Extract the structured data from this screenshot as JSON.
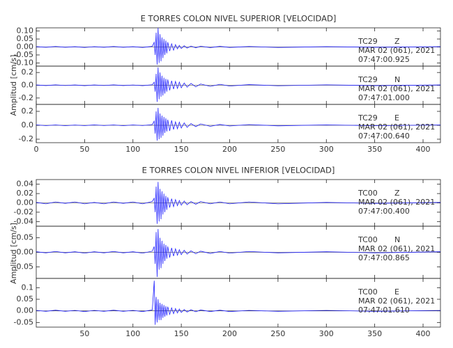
{
  "chart_data": [
    {
      "type": "line",
      "title": "E TORRES COLON NIVEL SUPERIOR [VELOCIDAD]",
      "y_label": "Amplitud [cm/s]",
      "color": "#1f1fff",
      "xlim": [
        0,
        418
      ],
      "xticks": [
        0,
        50,
        100,
        150,
        200,
        250,
        300,
        350,
        400
      ],
      "x": [
        0,
        10,
        20,
        30,
        40,
        50,
        60,
        70,
        80,
        90,
        100,
        110,
        120,
        122,
        123,
        124,
        125,
        126,
        127,
        128,
        129,
        130,
        131,
        132,
        133,
        134,
        135,
        136,
        138,
        140,
        142,
        144,
        146,
        148,
        150,
        153,
        156,
        160,
        165,
        170,
        180,
        190,
        200,
        220,
        250,
        300,
        350,
        418
      ],
      "panels": [
        {
          "station": "TC29",
          "component": "Z",
          "date": "MAR 02 (061), 2021",
          "time": "07:47:00.925",
          "ylim": [
            -0.12,
            0.12
          ],
          "yticks": [
            {
              "value": 0.1,
              "label": "0.10"
            },
            0.05,
            {
              "value": 0,
              "label": "0.00"
            },
            -0.05,
            {
              "value": -0.1,
              "label": "-0.10"
            }
          ],
          "values": [
            0.002,
            -0.002,
            0.003,
            -0.002,
            0.002,
            -0.003,
            0.002,
            -0.002,
            0.003,
            -0.002,
            0.002,
            -0.003,
            0.004,
            0.03,
            -0.05,
            0.09,
            -0.11,
            0.12,
            -0.1,
            0.08,
            -0.09,
            0.06,
            -0.07,
            0.05,
            -0.05,
            0.04,
            -0.04,
            0.03,
            -0.025,
            0.02,
            -0.02,
            0.015,
            -0.012,
            0.01,
            -0.01,
            0.008,
            -0.007,
            0.006,
            -0.005,
            0.005,
            -0.004,
            0.004,
            -0.003,
            0.003,
            -0.003,
            0.002,
            -0.002,
            0.002
          ]
        },
        {
          "station": "TC29",
          "component": "N",
          "date": "MAR 02 (061), 2021",
          "time": "07:47:01.000",
          "ylim": [
            -0.3,
            0.3
          ],
          "yticks": [
            0.2,
            {
              "value": 0,
              "label": "0.0"
            },
            -0.2
          ],
          "values": [
            0.005,
            -0.005,
            0.006,
            -0.004,
            0.005,
            -0.006,
            0.005,
            -0.004,
            0.006,
            -0.005,
            0.004,
            -0.006,
            0.008,
            0.05,
            -0.1,
            0.18,
            -0.26,
            0.28,
            -0.22,
            0.2,
            -0.18,
            0.15,
            -0.16,
            0.12,
            -0.13,
            0.1,
            -0.1,
            0.09,
            -0.08,
            0.07,
            -0.06,
            0.06,
            -0.05,
            0.05,
            -0.04,
            0.035,
            -0.03,
            0.03,
            -0.025,
            0.02,
            -0.018,
            0.015,
            -0.012,
            0.01,
            -0.008,
            0.007,
            -0.006,
            0.005
          ]
        },
        {
          "station": "TC29",
          "component": "E",
          "date": "MAR 02 (061), 2021",
          "time": "07:47:00.640",
          "ylim": [
            -0.25,
            0.3
          ],
          "yticks": [
            0.2,
            {
              "value": 0,
              "label": "0.0"
            },
            -0.2
          ],
          "values": [
            0.006,
            -0.005,
            0.005,
            -0.006,
            0.004,
            -0.005,
            0.006,
            -0.004,
            0.005,
            -0.006,
            0.005,
            -0.004,
            0.01,
            0.06,
            -0.12,
            0.2,
            -0.22,
            0.25,
            -0.2,
            0.17,
            -0.18,
            0.14,
            -0.15,
            0.12,
            -0.11,
            0.1,
            -0.09,
            0.08,
            -0.08,
            0.07,
            -0.06,
            0.05,
            -0.05,
            0.045,
            -0.04,
            0.035,
            -0.03,
            0.025,
            -0.02,
            0.02,
            -0.015,
            0.012,
            -0.01,
            0.01,
            -0.008,
            0.006,
            -0.006,
            0.005
          ]
        }
      ]
    },
    {
      "type": "line",
      "title": "E TORRES COLON NIVEL INFERIOR [VELOCIDAD]",
      "y_label": "Amplitud [cm/s]",
      "color": "#1f1fff",
      "xlim": [
        0,
        418
      ],
      "xticks": [
        50,
        100,
        150,
        200,
        250,
        300,
        350,
        400
      ],
      "x": [
        0,
        10,
        20,
        30,
        40,
        50,
        60,
        70,
        80,
        90,
        100,
        110,
        120,
        122,
        123,
        124,
        125,
        126,
        127,
        128,
        129,
        130,
        131,
        132,
        133,
        134,
        135,
        136,
        138,
        140,
        142,
        144,
        146,
        148,
        150,
        153,
        156,
        160,
        165,
        170,
        180,
        190,
        200,
        220,
        250,
        300,
        350,
        418
      ],
      "panels": [
        {
          "station": "TC00",
          "component": "Z",
          "date": "MAR 02 (061), 2021",
          "time": "07:47:00.400",
          "ylim": [
            -0.05,
            0.05
          ],
          "yticks": [
            0.04,
            0.02,
            {
              "value": 0,
              "label": "0.00"
            },
            -0.02,
            -0.04
          ],
          "values": [
            0.001,
            -0.002,
            0.002,
            -0.001,
            0.002,
            -0.002,
            0.001,
            -0.002,
            0.002,
            -0.001,
            0.002,
            -0.002,
            0.003,
            0.01,
            -0.02,
            0.035,
            -0.045,
            0.045,
            -0.04,
            0.03,
            -0.035,
            0.025,
            -0.025,
            0.02,
            -0.02,
            0.015,
            -0.015,
            0.012,
            -0.01,
            0.009,
            -0.008,
            0.007,
            -0.006,
            0.005,
            -0.005,
            0.004,
            -0.004,
            0.003,
            -0.003,
            0.003,
            -0.002,
            0.002,
            -0.002,
            0.002,
            -0.002,
            0.001,
            -0.001,
            0.001
          ]
        },
        {
          "station": "TC00",
          "component": "N",
          "date": "MAR 02 (061), 2021",
          "time": "07:47:00.865",
          "ylim": [
            -0.09,
            0.09
          ],
          "yticks": [
            0.05,
            {
              "value": 0,
              "label": "0.00"
            },
            -0.05
          ],
          "values": [
            0.002,
            -0.002,
            0.003,
            -0.002,
            0.002,
            -0.003,
            0.002,
            -0.002,
            0.003,
            -0.002,
            0.002,
            -0.003,
            0.004,
            0.02,
            -0.04,
            0.07,
            -0.085,
            0.08,
            -0.06,
            0.05,
            -0.055,
            0.04,
            -0.04,
            0.03,
            -0.03,
            0.025,
            -0.022,
            0.02,
            -0.018,
            0.015,
            -0.013,
            0.012,
            -0.01,
            0.009,
            -0.008,
            0.007,
            -0.006,
            0.005,
            -0.005,
            0.004,
            -0.004,
            0.003,
            -0.003,
            0.003,
            -0.002,
            0.002,
            -0.002,
            0.002
          ]
        },
        {
          "station": "TC00",
          "component": "E",
          "date": "MAR 02 (061), 2021",
          "time": "07:47:01.610",
          "ylim": [
            -0.07,
            0.14
          ],
          "yticks": [
            0.1,
            0.05,
            {
              "value": 0,
              "label": "0.00"
            },
            -0.05
          ],
          "values": [
            0.002,
            -0.002,
            0.003,
            -0.002,
            0.002,
            -0.003,
            0.002,
            -0.002,
            0.003,
            -0.002,
            0.002,
            -0.003,
            0.004,
            0.13,
            -0.06,
            0.06,
            -0.05,
            0.05,
            -0.04,
            0.035,
            -0.04,
            0.03,
            -0.03,
            0.025,
            -0.025,
            0.02,
            -0.02,
            0.018,
            -0.015,
            0.013,
            -0.012,
            0.01,
            -0.009,
            0.008,
            -0.007,
            0.006,
            -0.005,
            0.005,
            -0.004,
            0.004,
            -0.003,
            0.003,
            -0.003,
            0.002,
            -0.002,
            0.002,
            -0.002,
            0.002
          ]
        }
      ]
    }
  ]
}
